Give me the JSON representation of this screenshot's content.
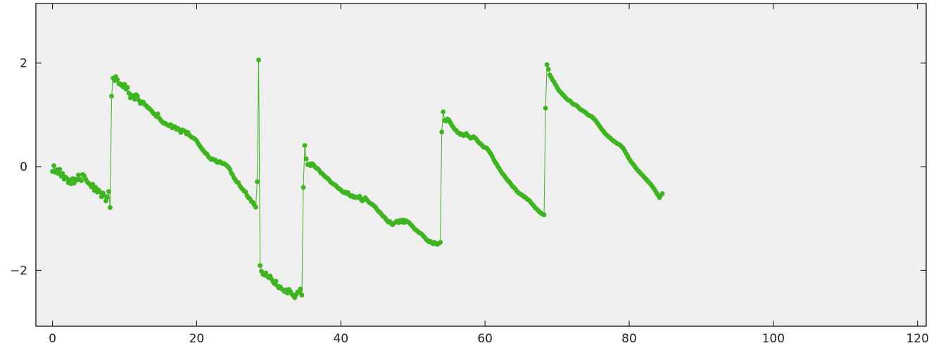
{
  "colors": {
    "background": "#efefef",
    "frame": "#000000",
    "series": "#3db51f"
  },
  "chart_data": {
    "type": "line",
    "title": "",
    "xlabel": "",
    "ylabel": "",
    "xlim": [
      -2.3,
      121.2
    ],
    "ylim": [
      -3.08,
      3.15
    ],
    "grid": false,
    "legend": "none",
    "x_ticks": [
      0,
      20,
      40,
      60,
      80,
      100,
      120
    ],
    "x_tick_labels": [
      "0",
      "20",
      "40",
      "60",
      "80",
      "100",
      "120"
    ],
    "y_ticks": [
      -2,
      0,
      2
    ],
    "y_tick_labels": [
      "−2",
      "0",
      "2"
    ],
    "markers": true,
    "sampling_step": 0.2,
    "x_start": 0,
    "series": [
      {
        "values": [
          -0.09,
          0.02,
          -0.11,
          -0.06,
          -0.13,
          -0.05,
          -0.18,
          -0.13,
          -0.24,
          -0.2,
          -0.23,
          -0.31,
          -0.26,
          -0.33,
          -0.23,
          -0.32,
          -0.24,
          -0.26,
          -0.16,
          -0.24,
          -0.27,
          -0.15,
          -0.18,
          -0.24,
          -0.29,
          -0.32,
          -0.34,
          -0.39,
          -0.34,
          -0.46,
          -0.4,
          -0.49,
          -0.45,
          -0.49,
          -0.58,
          -0.51,
          -0.56,
          -0.66,
          -0.59,
          -0.48,
          -0.79,
          1.36,
          1.71,
          1.66,
          1.74,
          1.68,
          1.6,
          1.6,
          1.57,
          1.54,
          1.59,
          1.5,
          1.53,
          1.42,
          1.33,
          1.38,
          1.34,
          1.3,
          1.39,
          1.36,
          1.28,
          1.22,
          1.25,
          1.25,
          1.2,
          1.18,
          1.14,
          1.13,
          1.1,
          1.07,
          1.03,
          1.01,
          0.97,
          1.02,
          0.94,
          0.9,
          0.87,
          0.84,
          0.84,
          0.82,
          0.8,
          0.79,
          0.81,
          0.75,
          0.78,
          0.77,
          0.72,
          0.74,
          0.71,
          0.66,
          0.71,
          0.7,
          0.68,
          0.63,
          0.66,
          0.61,
          0.58,
          0.56,
          0.55,
          0.53,
          0.5,
          0.45,
          0.41,
          0.37,
          0.33,
          0.3,
          0.26,
          0.25,
          0.2,
          0.17,
          0.14,
          0.15,
          0.13,
          0.13,
          0.09,
          0.08,
          0.1,
          0.08,
          0.06,
          0.06,
          0.04,
          0.02,
          -0.01,
          -0.05,
          -0.12,
          -0.16,
          -0.22,
          -0.26,
          -0.3,
          -0.31,
          -0.37,
          -0.41,
          -0.44,
          -0.47,
          -0.49,
          -0.56,
          -0.6,
          -0.62,
          -0.67,
          -0.69,
          -0.74,
          -0.78,
          -0.29,
          2.06,
          -1.91,
          -2.02,
          -2.08,
          -2.09,
          -2.05,
          -2.12,
          -2.14,
          -2.11,
          -2.17,
          -2.22,
          -2.26,
          -2.21,
          -2.3,
          -2.34,
          -2.32,
          -2.36,
          -2.38,
          -2.41,
          -2.38,
          -2.44,
          -2.37,
          -2.41,
          -2.46,
          -2.49,
          -2.53,
          -2.47,
          -2.42,
          -2.42,
          -2.36,
          -2.48,
          -0.4,
          0.41,
          0.15,
          0.04,
          0.05,
          0.02,
          0.06,
          0.04,
          0.0,
          -0.03,
          -0.04,
          -0.07,
          -0.12,
          -0.13,
          -0.16,
          -0.19,
          -0.21,
          -0.23,
          -0.26,
          -0.3,
          -0.32,
          -0.34,
          -0.35,
          -0.38,
          -0.41,
          -0.43,
          -0.45,
          -0.48,
          -0.5,
          -0.49,
          -0.52,
          -0.5,
          -0.55,
          -0.57,
          -0.56,
          -0.59,
          -0.58,
          -0.6,
          -0.59,
          -0.57,
          -0.63,
          -0.66,
          -0.62,
          -0.6,
          -0.64,
          -0.67,
          -0.7,
          -0.72,
          -0.73,
          -0.76,
          -0.78,
          -0.82,
          -0.86,
          -0.88,
          -0.91,
          -0.95,
          -0.97,
          -1.0,
          -1.04,
          -1.07,
          -1.06,
          -1.1,
          -1.12,
          -1.09,
          -1.07,
          -1.05,
          -1.08,
          -1.04,
          -1.07,
          -1.03,
          -1.08,
          -1.04,
          -1.06,
          -1.07,
          -1.1,
          -1.13,
          -1.16,
          -1.2,
          -1.22,
          -1.24,
          -1.27,
          -1.28,
          -1.3,
          -1.33,
          -1.36,
          -1.4,
          -1.42,
          -1.45,
          -1.44,
          -1.47,
          -1.49,
          -1.46,
          -1.49,
          -1.5,
          -1.48,
          -1.46,
          0.67,
          1.06,
          0.89,
          0.88,
          0.92,
          0.9,
          0.85,
          0.8,
          0.76,
          0.72,
          0.7,
          0.66,
          0.65,
          0.62,
          0.63,
          0.6,
          0.61,
          0.64,
          0.6,
          0.58,
          0.55,
          0.56,
          0.58,
          0.56,
          0.53,
          0.49,
          0.46,
          0.44,
          0.41,
          0.38,
          0.37,
          0.36,
          0.33,
          0.29,
          0.25,
          0.2,
          0.14,
          0.09,
          0.05,
          0.0,
          -0.04,
          -0.09,
          -0.13,
          -0.16,
          -0.2,
          -0.24,
          -0.27,
          -0.3,
          -0.34,
          -0.38,
          -0.4,
          -0.43,
          -0.47,
          -0.5,
          -0.52,
          -0.54,
          -0.55,
          -0.58,
          -0.59,
          -0.62,
          -0.64,
          -0.66,
          -0.7,
          -0.73,
          -0.76,
          -0.8,
          -0.82,
          -0.85,
          -0.88,
          -0.9,
          -0.92,
          -0.93,
          1.13,
          1.97,
          1.88,
          1.77,
          1.72,
          1.67,
          1.63,
          1.58,
          1.53,
          1.48,
          1.45,
          1.42,
          1.39,
          1.36,
          1.33,
          1.3,
          1.28,
          1.27,
          1.24,
          1.21,
          1.2,
          1.19,
          1.17,
          1.14,
          1.11,
          1.09,
          1.08,
          1.06,
          1.04,
          1.01,
          0.99,
          0.98,
          0.97,
          0.94,
          0.91,
          0.88,
          0.84,
          0.8,
          0.76,
          0.72,
          0.69,
          0.65,
          0.62,
          0.6,
          0.57,
          0.55,
          0.52,
          0.5,
          0.48,
          0.46,
          0.44,
          0.43,
          0.41,
          0.38,
          0.35,
          0.3,
          0.25,
          0.2,
          0.15,
          0.11,
          0.07,
          0.04,
          0.0,
          -0.04,
          -0.07,
          -0.1,
          -0.13,
          -0.16,
          -0.19,
          -0.22,
          -0.25,
          -0.28,
          -0.31,
          -0.34,
          -0.38,
          -0.42,
          -0.46,
          -0.51,
          -0.55,
          -0.6,
          -0.55,
          -0.52
        ]
      }
    ]
  }
}
